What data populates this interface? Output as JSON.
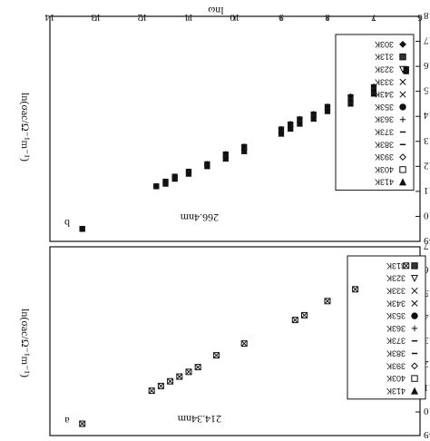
{
  "figure": {
    "note": "Figure appears rotated 180 degrees (upside-down image)."
  },
  "chart_data": [
    {
      "type": "scatter",
      "panel_label": "b",
      "panel_tag": "266.4nm",
      "title": "",
      "xlabel": "lnω",
      "ylabel": "ln(σac/Ω⁻¹m⁻¹)",
      "xlim": [
        6,
        14
      ],
      "ylim": [
        -18,
        -9
      ],
      "x_ticks": [
        "6",
        "7",
        "8",
        "9",
        "10",
        "11",
        "12",
        "13",
        "14"
      ],
      "y_ticks": [
        "-18",
        "-17",
        "-16",
        "-15",
        "-14",
        "-13",
        "-12",
        "-11",
        "-10",
        "-9"
      ],
      "legend_entries": [
        "413K",
        "403K",
        "393K",
        "383K",
        "373K",
        "363K",
        "353K",
        "343K",
        "333K",
        "323K",
        "313K",
        "303K"
      ],
      "legend_position": "top-left",
      "x": [
        6.3,
        7.0,
        7.5,
        8.0,
        8.3,
        8.6,
        8.8,
        9.0,
        9.8,
        10.2,
        10.6,
        11.0,
        11.3,
        11.5,
        11.7,
        13.3
      ],
      "series": [
        {
          "name": "413K",
          "values": [
            -15.8,
            -14.9,
            -14.5,
            -14.2,
            -13.9,
            -13.7,
            -13.5,
            -13.3,
            -12.6,
            -12.3,
            -12.0,
            -11.7,
            -11.5,
            -11.3,
            -11.2,
            -9.5
          ]
        },
        {
          "name": "303K",
          "values": [
            -15.9,
            -15.2,
            -14.8,
            -14.4,
            -14.1,
            -13.9,
            -13.7,
            -13.5,
            -12.8,
            -12.5,
            -12.1,
            -11.8,
            -11.6,
            -11.4,
            -11.2,
            -9.5
          ]
        }
      ]
    },
    {
      "type": "scatter",
      "panel_label": "a",
      "panel_tag": "214.34nm",
      "title": "",
      "xlabel": "",
      "ylabel": "ln(σac/Ω⁻¹m⁻¹)",
      "xlim": [
        6,
        14
      ],
      "ylim": [
        -17,
        -9
      ],
      "y_ticks": [
        "-17",
        "-16",
        "-15",
        "-14",
        "-13",
        "-12",
        "-11",
        "-10",
        "-9"
      ],
      "legend_entries": [
        "413K",
        "403K",
        "393K",
        "383K",
        "373K",
        "363K",
        "353K",
        "343K",
        "333K",
        "323K",
        "313K"
      ],
      "legend_position": "top-left",
      "x": [
        6.3,
        7.4,
        8.0,
        8.5,
        8.7,
        9.8,
        10.4,
        10.8,
        11.0,
        11.2,
        11.4,
        11.6,
        11.8,
        13.3
      ],
      "series": [
        {
          "name": "313K",
          "values": [
            -16.2,
            -15.2,
            -14.7,
            -14.1,
            -13.9,
            -12.9,
            -12.4,
            -11.9,
            -11.7,
            -11.5,
            -11.3,
            -11.1,
            -10.9,
            -9.5
          ]
        }
      ]
    }
  ]
}
